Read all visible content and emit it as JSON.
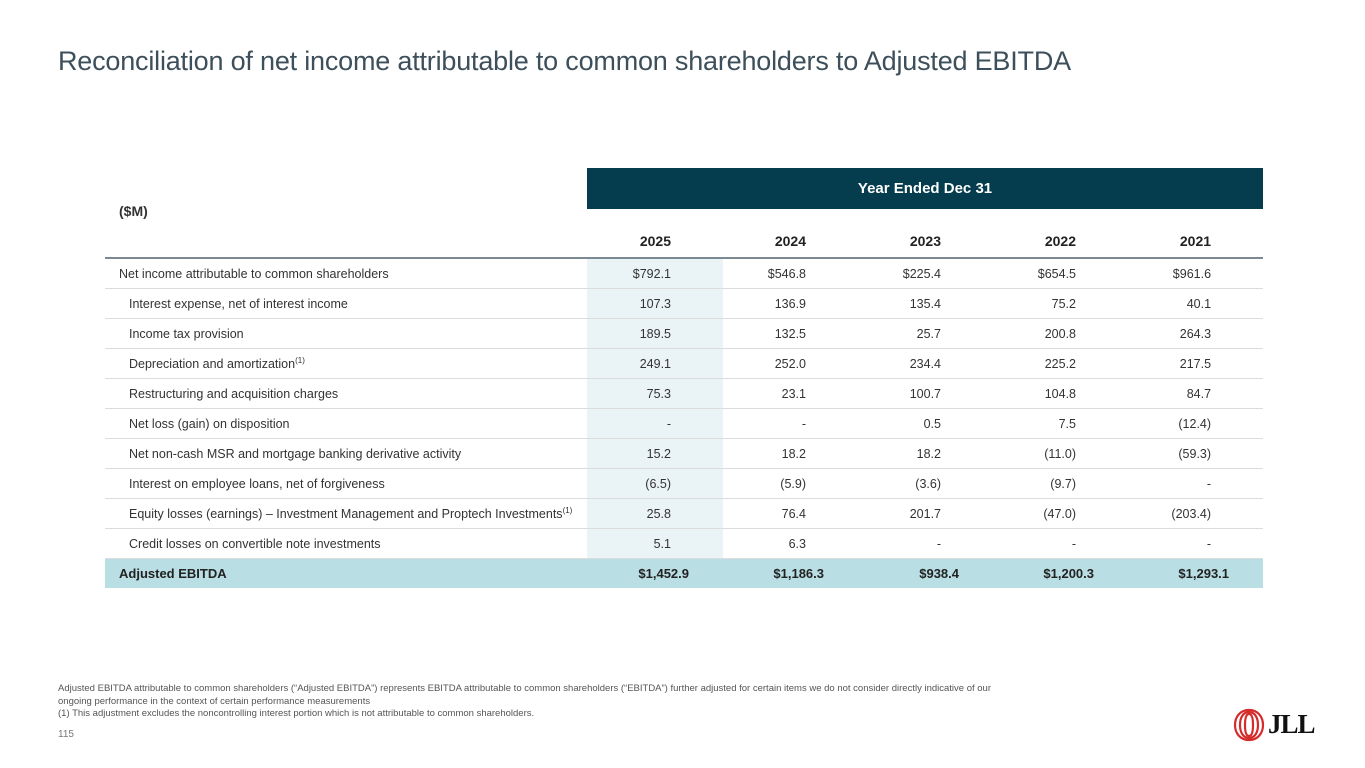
{
  "page": {
    "title": "Reconciliation of net income attributable to common shareholders to Adjusted EBITDA",
    "page_number": "115"
  },
  "table": {
    "banner": "Year Ended Dec 31",
    "unit_label": "($M)",
    "years": [
      "2025",
      "2024",
      "2023",
      "2022",
      "2021"
    ],
    "rows": [
      {
        "label": "Net income attributable to common shareholders",
        "sup": "",
        "indent": false,
        "values": [
          "$792.1",
          "$546.8",
          "$225.4",
          "$654.5",
          "$961.6"
        ]
      },
      {
        "label": "Interest expense, net of interest income",
        "sup": "",
        "indent": true,
        "values": [
          "107.3",
          "136.9",
          "135.4",
          "75.2",
          "40.1"
        ]
      },
      {
        "label": "Income tax provision",
        "sup": "",
        "indent": true,
        "values": [
          "189.5",
          "132.5",
          "25.7",
          "200.8",
          "264.3"
        ]
      },
      {
        "label": "Depreciation and amortization",
        "sup": "(1)",
        "indent": true,
        "values": [
          "249.1",
          "252.0",
          "234.4",
          "225.2",
          "217.5"
        ]
      },
      {
        "label": "Restructuring and acquisition charges",
        "sup": "",
        "indent": true,
        "values": [
          "75.3",
          "23.1",
          "100.7",
          "104.8",
          "84.7"
        ]
      },
      {
        "label": "Net loss (gain) on disposition",
        "sup": "",
        "indent": true,
        "values": [
          "-",
          "-",
          "0.5",
          "7.5",
          "(12.4)"
        ]
      },
      {
        "label": "Net non-cash MSR and mortgage banking derivative activity",
        "sup": "",
        "indent": true,
        "values": [
          "15.2",
          "18.2",
          "18.2",
          "(11.0)",
          "(59.3)"
        ]
      },
      {
        "label": "Interest on employee loans, net of forgiveness",
        "sup": "",
        "indent": true,
        "values": [
          "(6.5)",
          "(5.9)",
          "(3.6)",
          "(9.7)",
          "-"
        ]
      },
      {
        "label": "Equity losses (earnings) – Investment Management and Proptech Investments",
        "sup": "(1)",
        "indent": true,
        "values": [
          "25.8",
          "76.4",
          "201.7",
          "(47.0)",
          "(203.4)"
        ]
      },
      {
        "label": "Credit losses on convertible note investments",
        "sup": "",
        "indent": true,
        "values": [
          "5.1",
          "6.3",
          "-",
          "-",
          "-"
        ]
      }
    ],
    "total": {
      "label": "Adjusted EBITDA",
      "values": [
        "$1,452.9",
        "$1,186.3",
        "$938.4",
        "$1,200.3",
        "$1,293.1"
      ]
    }
  },
  "footnotes": {
    "line1": "Adjusted EBITDA attributable to common shareholders (“Adjusted EBITDA”) represents EBITDA attributable to common shareholders (“EBITDA”) further adjusted for certain items we do not consider directly indicative of our ongoing performance in the context of certain performance measurements",
    "line2": "(1) This adjustment excludes the noncontrolling interest portion which is not attributable to common shareholders."
  },
  "logo": {
    "text": "JLL",
    "color": "#d62b2b"
  },
  "colors": {
    "banner": "#053d4e",
    "total_row": "#b9dfe5",
    "highlight_col": "#eaf3f6"
  }
}
